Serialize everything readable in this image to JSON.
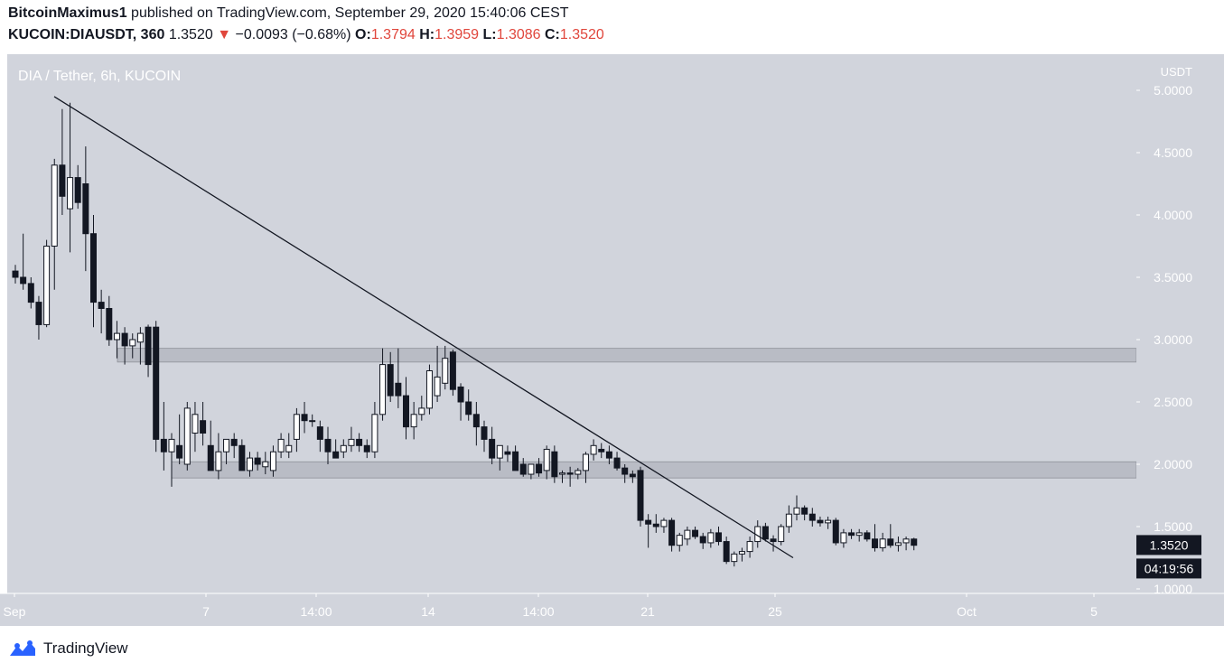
{
  "header": {
    "author": "BitcoinMaximus1",
    "published_text": "published on TradingView.com, September 29, 2020 15:40:06 CEST",
    "symbol": "KUCOIN:DIAUSDT, 360",
    "last": "1.3520",
    "arrow": "▼",
    "change": "−0.0093 (−0.68%)",
    "o_label": "O:",
    "o_value": "1.3794",
    "h_label": "H:",
    "h_value": "1.3959",
    "l_label": "L:",
    "l_value": "1.3086",
    "c_label": "C:",
    "c_value": "1.3520"
  },
  "pane_title": "DIA / Tether, 6h, KUCOIN",
  "footer": {
    "brand": "TradingView"
  },
  "colors": {
    "plot_bg": "#d1d4dc",
    "up_fill": "#ffffff",
    "down_fill": "#131722",
    "zone": "#a9acb5",
    "price_tag_bg": "#131722",
    "brand_blue": "#2962ff"
  },
  "chart_data": {
    "type": "candlestick",
    "y_axis": {
      "unit": "USDT",
      "ticks": [
        "5.0000",
        "4.5000",
        "4.0000",
        "3.5000",
        "3.0000",
        "2.5000",
        "2.0000",
        "1.5000",
        "1.0000"
      ],
      "range": [
        0.98,
        5.3
      ]
    },
    "x_axis": {
      "ticks": [
        "Sep",
        "7",
        "14:00",
        "14",
        "14:00",
        "21",
        "25",
        "Oct",
        "5"
      ]
    },
    "last_price_label": "1.3520",
    "countdown_label": "04:19:56",
    "zones": [
      {
        "low": 2.82,
        "high": 2.93
      },
      {
        "low": 1.89,
        "high": 2.02
      }
    ],
    "trendline": {
      "start_price": 4.95,
      "end_price": 1.25
    },
    "candles": [
      {
        "o": 3.55,
        "h": 3.6,
        "l": 3.45,
        "c": 3.5
      },
      {
        "o": 3.5,
        "h": 3.85,
        "l": 3.4,
        "c": 3.45
      },
      {
        "o": 3.45,
        "h": 3.5,
        "l": 3.25,
        "c": 3.3
      },
      {
        "o": 3.3,
        "h": 3.35,
        "l": 3.0,
        "c": 3.12
      },
      {
        "o": 3.12,
        "h": 3.8,
        "l": 3.1,
        "c": 3.75
      },
      {
        "o": 3.75,
        "h": 4.45,
        "l": 3.4,
        "c": 4.4
      },
      {
        "o": 4.4,
        "h": 4.85,
        "l": 4.0,
        "c": 4.15
      },
      {
        "o": 4.05,
        "h": 4.9,
        "l": 3.7,
        "c": 4.3
      },
      {
        "o": 4.3,
        "h": 4.4,
        "l": 4.05,
        "c": 4.1
      },
      {
        "o": 4.25,
        "h": 4.55,
        "l": 3.55,
        "c": 3.85
      },
      {
        "o": 3.85,
        "h": 4.0,
        "l": 3.1,
        "c": 3.3
      },
      {
        "o": 3.3,
        "h": 3.4,
        "l": 3.05,
        "c": 3.25
      },
      {
        "o": 3.25,
        "h": 3.35,
        "l": 2.95,
        "c": 3.0
      },
      {
        "o": 3.0,
        "h": 3.15,
        "l": 2.85,
        "c": 3.05
      },
      {
        "o": 3.05,
        "h": 3.1,
        "l": 2.8,
        "c": 2.95
      },
      {
        "o": 2.95,
        "h": 3.05,
        "l": 2.85,
        "c": 3.0
      },
      {
        "o": 2.98,
        "h": 3.1,
        "l": 2.8,
        "c": 3.05
      },
      {
        "o": 3.1,
        "h": 3.12,
        "l": 2.7,
        "c": 2.8
      },
      {
        "o": 3.1,
        "h": 3.15,
        "l": 2.1,
        "c": 2.2
      },
      {
        "o": 2.2,
        "h": 2.5,
        "l": 1.95,
        "c": 2.1
      },
      {
        "o": 2.1,
        "h": 2.25,
        "l": 1.82,
        "c": 2.2
      },
      {
        "o": 2.15,
        "h": 2.4,
        "l": 2.0,
        "c": 2.05
      },
      {
        "o": 2.0,
        "h": 2.5,
        "l": 1.95,
        "c": 2.45
      },
      {
        "o": 2.25,
        "h": 2.5,
        "l": 2.1,
        "c": 2.4
      },
      {
        "o": 2.35,
        "h": 2.5,
        "l": 2.15,
        "c": 2.25
      },
      {
        "o": 2.15,
        "h": 2.35,
        "l": 1.95,
        "c": 1.95
      },
      {
        "o": 1.95,
        "h": 2.25,
        "l": 1.88,
        "c": 2.1
      },
      {
        "o": 2.1,
        "h": 2.2,
        "l": 2.0,
        "c": 2.2
      },
      {
        "o": 2.2,
        "h": 2.25,
        "l": 2.05,
        "c": 2.15
      },
      {
        "o": 2.15,
        "h": 2.2,
        "l": 1.95,
        "c": 1.95
      },
      {
        "o": 1.95,
        "h": 2.1,
        "l": 1.9,
        "c": 2.05
      },
      {
        "o": 2.05,
        "h": 2.1,
        "l": 1.95,
        "c": 2.0
      },
      {
        "o": 1.98,
        "h": 2.1,
        "l": 1.92,
        "c": 2.02
      },
      {
        "o": 1.95,
        "h": 2.15,
        "l": 1.9,
        "c": 2.1
      },
      {
        "o": 2.1,
        "h": 2.25,
        "l": 2.05,
        "c": 2.2
      },
      {
        "o": 2.1,
        "h": 2.25,
        "l": 2.05,
        "c": 2.15
      },
      {
        "o": 2.2,
        "h": 2.45,
        "l": 2.1,
        "c": 2.4
      },
      {
        "o": 2.4,
        "h": 2.5,
        "l": 2.25,
        "c": 2.35
      },
      {
        "o": 2.35,
        "h": 2.4,
        "l": 2.3,
        "c": 2.35
      },
      {
        "o": 2.3,
        "h": 2.35,
        "l": 2.1,
        "c": 2.2
      },
      {
        "o": 2.2,
        "h": 2.3,
        "l": 2.0,
        "c": 2.1
      },
      {
        "o": 2.1,
        "h": 2.2,
        "l": 2.05,
        "c": 2.05
      },
      {
        "o": 2.1,
        "h": 2.2,
        "l": 2.05,
        "c": 2.15
      },
      {
        "o": 2.15,
        "h": 2.3,
        "l": 2.1,
        "c": 2.2
      },
      {
        "o": 2.2,
        "h": 2.25,
        "l": 2.1,
        "c": 2.15
      },
      {
        "o": 2.15,
        "h": 2.2,
        "l": 2.05,
        "c": 2.1
      },
      {
        "o": 2.1,
        "h": 2.5,
        "l": 2.05,
        "c": 2.4
      },
      {
        "o": 2.4,
        "h": 2.93,
        "l": 2.35,
        "c": 2.8
      },
      {
        "o": 2.8,
        "h": 2.9,
        "l": 2.5,
        "c": 2.55
      },
      {
        "o": 2.65,
        "h": 2.93,
        "l": 2.45,
        "c": 2.55
      },
      {
        "o": 2.55,
        "h": 2.7,
        "l": 2.2,
        "c": 2.3
      },
      {
        "o": 2.3,
        "h": 2.5,
        "l": 2.2,
        "c": 2.4
      },
      {
        "o": 2.4,
        "h": 2.55,
        "l": 2.35,
        "c": 2.45
      },
      {
        "o": 2.45,
        "h": 2.8,
        "l": 2.4,
        "c": 2.75
      },
      {
        "o": 2.55,
        "h": 2.95,
        "l": 2.5,
        "c": 2.7
      },
      {
        "o": 2.65,
        "h": 2.95,
        "l": 2.6,
        "c": 2.85
      },
      {
        "o": 2.9,
        "h": 2.92,
        "l": 2.55,
        "c": 2.6
      },
      {
        "o": 2.62,
        "h": 2.65,
        "l": 2.35,
        "c": 2.5
      },
      {
        "o": 2.5,
        "h": 2.6,
        "l": 2.35,
        "c": 2.4
      },
      {
        "o": 2.4,
        "h": 2.5,
        "l": 2.15,
        "c": 2.3
      },
      {
        "o": 2.3,
        "h": 2.35,
        "l": 2.1,
        "c": 2.2
      },
      {
        "o": 2.2,
        "h": 2.3,
        "l": 2.0,
        "c": 2.05
      },
      {
        "o": 2.05,
        "h": 2.15,
        "l": 1.95,
        "c": 2.15
      },
      {
        "o": 2.1,
        "h": 2.15,
        "l": 2.02,
        "c": 2.08
      },
      {
        "o": 2.1,
        "h": 2.15,
        "l": 1.95,
        "c": 1.95
      },
      {
        "o": 2.0,
        "h": 2.05,
        "l": 1.9,
        "c": 1.92
      },
      {
        "o": 1.92,
        "h": 2.0,
        "l": 1.88,
        "c": 2.0
      },
      {
        "o": 2.0,
        "h": 2.05,
        "l": 1.9,
        "c": 1.93
      },
      {
        "o": 1.95,
        "h": 2.15,
        "l": 1.88,
        "c": 2.12
      },
      {
        "o": 2.1,
        "h": 2.15,
        "l": 1.85,
        "c": 1.9
      },
      {
        "o": 1.92,
        "h": 1.95,
        "l": 1.85,
        "c": 1.93
      },
      {
        "o": 1.93,
        "h": 1.98,
        "l": 1.82,
        "c": 1.92
      },
      {
        "o": 1.92,
        "h": 1.97,
        "l": 1.88,
        "c": 1.95
      },
      {
        "o": 1.95,
        "h": 2.1,
        "l": 1.85,
        "c": 2.08
      },
      {
        "o": 2.08,
        "h": 2.2,
        "l": 2.03,
        "c": 2.15
      },
      {
        "o": 2.12,
        "h": 2.17,
        "l": 2.05,
        "c": 2.1
      },
      {
        "o": 2.1,
        "h": 2.15,
        "l": 2.0,
        "c": 2.05
      },
      {
        "o": 2.05,
        "h": 2.1,
        "l": 1.95,
        "c": 1.97
      },
      {
        "o": 1.97,
        "h": 2.0,
        "l": 1.85,
        "c": 1.92
      },
      {
        "o": 1.92,
        "h": 1.95,
        "l": 1.85,
        "c": 1.9
      },
      {
        "o": 1.95,
        "h": 1.98,
        "l": 1.5,
        "c": 1.55
      },
      {
        "o": 1.55,
        "h": 1.6,
        "l": 1.33,
        "c": 1.52
      },
      {
        "o": 1.52,
        "h": 1.6,
        "l": 1.45,
        "c": 1.5
      },
      {
        "o": 1.5,
        "h": 1.57,
        "l": 1.45,
        "c": 1.55
      },
      {
        "o": 1.55,
        "h": 1.57,
        "l": 1.3,
        "c": 1.35
      },
      {
        "o": 1.35,
        "h": 1.45,
        "l": 1.3,
        "c": 1.43
      },
      {
        "o": 1.4,
        "h": 1.5,
        "l": 1.35,
        "c": 1.47
      },
      {
        "o": 1.47,
        "h": 1.5,
        "l": 1.4,
        "c": 1.42
      },
      {
        "o": 1.42,
        "h": 1.45,
        "l": 1.32,
        "c": 1.37
      },
      {
        "o": 1.37,
        "h": 1.48,
        "l": 1.33,
        "c": 1.45
      },
      {
        "o": 1.45,
        "h": 1.5,
        "l": 1.35,
        "c": 1.38
      },
      {
        "o": 1.38,
        "h": 1.42,
        "l": 1.2,
        "c": 1.22
      },
      {
        "o": 1.22,
        "h": 1.3,
        "l": 1.18,
        "c": 1.28
      },
      {
        "o": 1.28,
        "h": 1.33,
        "l": 1.22,
        "c": 1.3
      },
      {
        "o": 1.3,
        "h": 1.42,
        "l": 1.25,
        "c": 1.38
      },
      {
        "o": 1.38,
        "h": 1.55,
        "l": 1.33,
        "c": 1.5
      },
      {
        "o": 1.5,
        "h": 1.53,
        "l": 1.38,
        "c": 1.4
      },
      {
        "o": 1.4,
        "h": 1.43,
        "l": 1.3,
        "c": 1.38
      },
      {
        "o": 1.38,
        "h": 1.52,
        "l": 1.35,
        "c": 1.5
      },
      {
        "o": 1.5,
        "h": 1.67,
        "l": 1.45,
        "c": 1.6
      },
      {
        "o": 1.6,
        "h": 1.75,
        "l": 1.55,
        "c": 1.65
      },
      {
        "o": 1.65,
        "h": 1.67,
        "l": 1.55,
        "c": 1.6
      },
      {
        "o": 1.6,
        "h": 1.65,
        "l": 1.5,
        "c": 1.55
      },
      {
        "o": 1.55,
        "h": 1.58,
        "l": 1.5,
        "c": 1.53
      },
      {
        "o": 1.53,
        "h": 1.58,
        "l": 1.48,
        "c": 1.55
      },
      {
        "o": 1.55,
        "h": 1.57,
        "l": 1.35,
        "c": 1.37
      },
      {
        "o": 1.37,
        "h": 1.48,
        "l": 1.33,
        "c": 1.45
      },
      {
        "o": 1.45,
        "h": 1.48,
        "l": 1.4,
        "c": 1.43
      },
      {
        "o": 1.43,
        "h": 1.48,
        "l": 1.38,
        "c": 1.45
      },
      {
        "o": 1.45,
        "h": 1.47,
        "l": 1.38,
        "c": 1.4
      },
      {
        "o": 1.4,
        "h": 1.52,
        "l": 1.3,
        "c": 1.33
      },
      {
        "o": 1.33,
        "h": 1.45,
        "l": 1.3,
        "c": 1.4
      },
      {
        "o": 1.4,
        "h": 1.52,
        "l": 1.33,
        "c": 1.35
      },
      {
        "o": 1.35,
        "h": 1.42,
        "l": 1.3,
        "c": 1.37
      },
      {
        "o": 1.37,
        "h": 1.42,
        "l": 1.31,
        "c": 1.4
      },
      {
        "o": 1.4,
        "h": 1.41,
        "l": 1.31,
        "c": 1.35
      }
    ]
  }
}
